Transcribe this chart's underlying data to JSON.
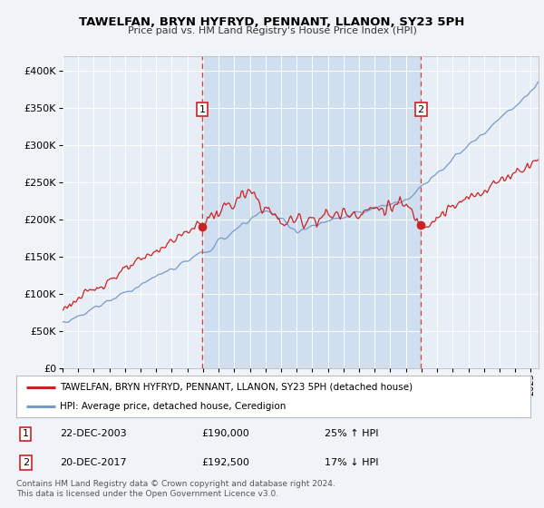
{
  "title": "TAWELFAN, BRYN HYFRYD, PENNANT, LLANON, SY23 5PH",
  "subtitle": "Price paid vs. HM Land Registry's House Price Index (HPI)",
  "legend_line1": "TAWELFAN, BRYN HYFRYD, PENNANT, LLANON, SY23 5PH (detached house)",
  "legend_line2": "HPI: Average price, detached house, Ceredigion",
  "annotation1_date": "22-DEC-2003",
  "annotation1_price": "£190,000",
  "annotation1_hpi": "25% ↑ HPI",
  "annotation2_date": "20-DEC-2017",
  "annotation2_price": "£192,500",
  "annotation2_hpi": "17% ↓ HPI",
  "footnote": "Contains HM Land Registry data © Crown copyright and database right 2024.\nThis data is licensed under the Open Government Licence v3.0.",
  "background_color": "#f0f4f8",
  "plot_bg_color": "#e8eef5",
  "shaded_region_color": "#d0dff0",
  "red_color": "#cc2222",
  "blue_color": "#7799cc",
  "grid_color": "#ffffff",
  "vline_color": "#cc4444",
  "ylim": [
    0,
    420000
  ],
  "yticks": [
    0,
    50000,
    100000,
    150000,
    200000,
    250000,
    300000,
    350000,
    400000
  ],
  "sale1_year": 2003.958,
  "sale1_value": 190000,
  "sale2_year": 2017.958,
  "sale2_value": 192500,
  "year_start": 1995,
  "year_end": 2025
}
